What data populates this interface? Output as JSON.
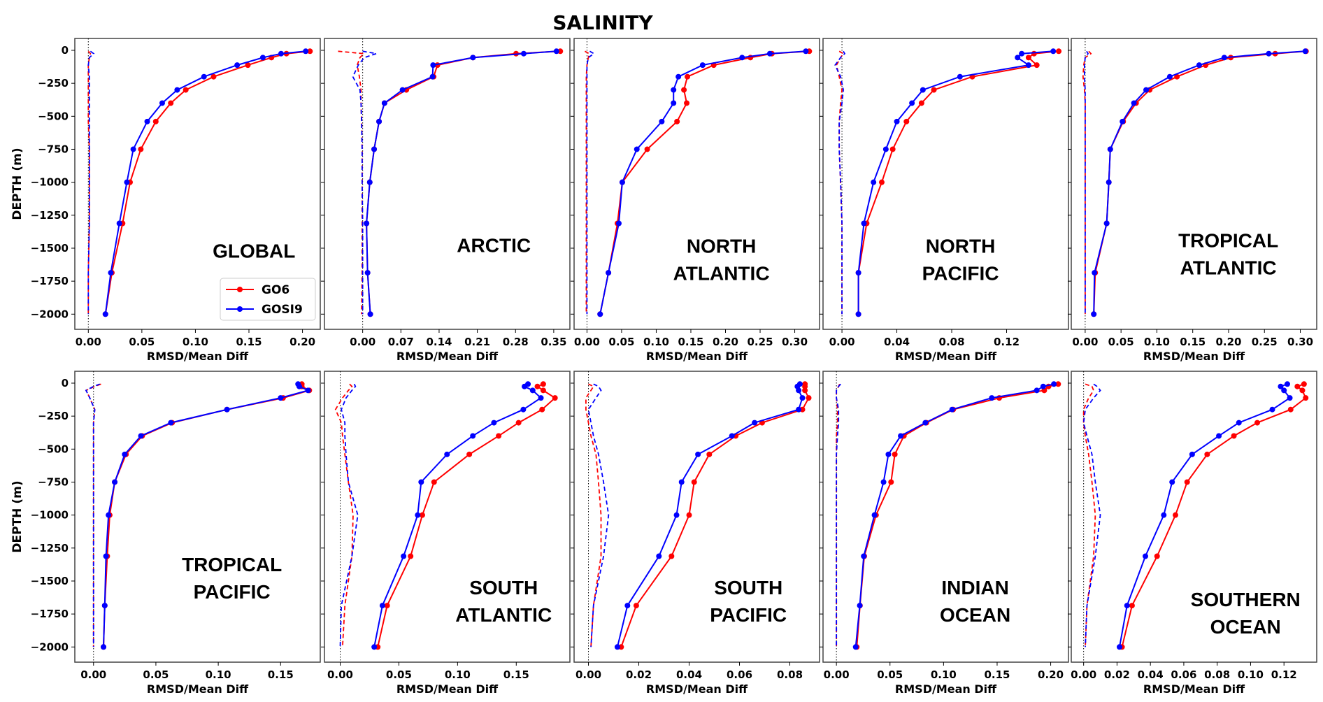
{
  "chart_data": {
    "type": "line",
    "title": "SALINITY",
    "ylabel": "DEPTH (m)",
    "xlabel": "RMSD/Mean Diff",
    "ylim": [
      -2115,
      90
    ],
    "yticks": [
      "0",
      "−250",
      "−500",
      "−750",
      "−1000",
      "−1250",
      "−1500",
      "−1750",
      "−2000"
    ],
    "ytick_values": [
      0,
      -250,
      -500,
      -750,
      -1000,
      -1250,
      -1500,
      -1750,
      -2000
    ],
    "depths": [
      -7,
      -25,
      -55,
      -112,
      -200,
      -300,
      -400,
      -540,
      -750,
      -1000,
      -1312,
      -1686,
      -2000
    ],
    "legend": {
      "placement": "lower-right of first panel",
      "entries": [
        {
          "name": "GO6",
          "color": "#ff0000"
        },
        {
          "name": "GOSI9",
          "color": "#0000ff"
        }
      ]
    },
    "notes": "Solid lines with markers = RMSD; dashed lines = mean difference; dotted vertical line at 0",
    "panels": [
      {
        "label": [
          "GLOBAL"
        ],
        "xlim": [
          -0.0126,
          0.2166
        ],
        "xticks": [
          0,
          0.05,
          0.1,
          0.15,
          0.2
        ],
        "xtick_labels": [
          "0.00",
          "0.05",
          "0.10",
          "0.15",
          "0.20"
        ],
        "GO6": [
          0.207,
          0.185,
          0.171,
          0.149,
          0.117,
          0.091,
          0.077,
          0.063,
          0.049,
          0.039,
          0.032,
          0.022,
          0.016
        ],
        "GOSI9": [
          0.203,
          0.18,
          0.163,
          0.139,
          0.108,
          0.083,
          0.069,
          0.055,
          0.042,
          0.036,
          0.029,
          0.021,
          0.016
        ],
        "GO6_mean": [
          0.0,
          0.002,
          0.001,
          0.0,
          0.0,
          0.0,
          0.0,
          0.0,
          0.001,
          0.001,
          0.001,
          0.0,
          0.0
        ],
        "GOSI9_mean": [
          0.002,
          0.005,
          0.001,
          0.0,
          0.001,
          0.001,
          0.001,
          0.001,
          0.001,
          0.001,
          0.001,
          0.0,
          0.0
        ]
      },
      {
        "label": [
          "ARCTIC"
        ],
        "xlim": [
          -0.07,
          0.3796
        ],
        "xticks": [
          0,
          0.07,
          0.14,
          0.21,
          0.28,
          0.35
        ],
        "xtick_labels": [
          "0.00",
          "0.07",
          "0.14",
          "0.21",
          "0.28",
          "0.35"
        ],
        "GO6": [
          0.362,
          0.281,
          0.202,
          0.137,
          0.13,
          0.08,
          0.04,
          0.03,
          0.021,
          0.013,
          0.007,
          0.009,
          0.014
        ],
        "GOSI9": [
          0.355,
          0.295,
          0.202,
          0.129,
          0.128,
          0.073,
          0.04,
          0.03,
          0.021,
          0.013,
          0.007,
          0.009,
          0.014
        ],
        "GO6_mean": [
          -0.045,
          0.002,
          -0.005,
          -0.01,
          -0.006,
          -0.003,
          -0.003,
          -0.002,
          -0.001,
          -0.001,
          -0.001,
          -0.001,
          -0.002
        ],
        "GOSI9_mean": [
          0.0,
          0.025,
          0.003,
          -0.008,
          -0.018,
          -0.005,
          -0.003,
          -0.002,
          -0.001,
          -0.001,
          0.0,
          0.0,
          0.0
        ]
      },
      {
        "label": [
          "NORTH",
          "ATLANTIC"
        ],
        "xlim": [
          -0.0186,
          0.3358
        ],
        "xticks": [
          0,
          0.05,
          0.1,
          0.15,
          0.2,
          0.25,
          0.3
        ],
        "xtick_labels": [
          "0.00",
          "0.05",
          "0.10",
          "0.15",
          "0.20",
          "0.25",
          "0.30"
        ],
        "GO6": [
          0.321,
          0.267,
          0.236,
          0.183,
          0.145,
          0.14,
          0.144,
          0.13,
          0.087,
          0.051,
          0.044,
          0.031,
          0.019
        ],
        "GOSI9": [
          0.316,
          0.264,
          0.224,
          0.167,
          0.132,
          0.125,
          0.125,
          0.108,
          0.072,
          0.051,
          0.046,
          0.031,
          0.019
        ],
        "GO6_mean": [
          -0.003,
          0.003,
          0.002,
          0.0,
          -0.001,
          -0.001,
          -0.001,
          -0.001,
          -0.001,
          -0.001,
          -0.001,
          -0.001,
          -0.001
        ],
        "GOSI9_mean": [
          0.004,
          0.01,
          0.002,
          0.0,
          0.0,
          0.0,
          0.0,
          0.0,
          0.0,
          0.0,
          0.0,
          0.0,
          0.0
        ]
      },
      {
        "label": [
          "NORTH",
          "PACIFIC"
        ],
        "xlim": [
          -0.0138,
          0.1651
        ],
        "xticks": [
          0,
          0.04,
          0.08,
          0.12
        ],
        "xtick_labels": [
          "0.00",
          "0.04",
          "0.08",
          "0.12"
        ],
        "GO6": [
          0.158,
          0.14,
          0.136,
          0.142,
          0.095,
          0.067,
          0.058,
          0.047,
          0.037,
          0.029,
          0.018,
          0.012,
          0.012
        ],
        "GOSI9": [
          0.154,
          0.131,
          0.128,
          0.136,
          0.086,
          0.059,
          0.051,
          0.04,
          0.032,
          0.023,
          0.016,
          0.012,
          0.012
        ],
        "GO6_mean": [
          -0.002,
          0.001,
          -0.001,
          -0.004,
          -0.002,
          0.0,
          -0.001,
          -0.002,
          -0.002,
          -0.001,
          0.0,
          0.0,
          0.0
        ],
        "GOSI9_mean": [
          0.001,
          0.002,
          -0.001,
          -0.005,
          -0.001,
          0.001,
          0.0,
          -0.002,
          -0.002,
          -0.001,
          0.0,
          0.0,
          0.0
        ]
      },
      {
        "label": [
          "TROPICAL",
          "ATLANTIC"
        ],
        "xlim": [
          -0.0194,
          0.3229
        ],
        "xticks": [
          0,
          0.05,
          0.1,
          0.15,
          0.2,
          0.25,
          0.3
        ],
        "xtick_labels": [
          "0.00",
          "0.05",
          "0.10",
          "0.15",
          "0.20",
          "0.25",
          "0.30"
        ],
        "GO6": [
          0.308,
          0.265,
          0.203,
          0.168,
          0.128,
          0.09,
          0.071,
          0.053,
          0.035,
          0.033,
          0.03,
          0.014,
          0.012
        ],
        "GOSI9": [
          0.307,
          0.256,
          0.194,
          0.159,
          0.118,
          0.085,
          0.068,
          0.052,
          0.035,
          0.033,
          0.03,
          0.013,
          0.012
        ],
        "GO6_mean": [
          0.005,
          0.008,
          0.0,
          -0.002,
          -0.003,
          -0.001,
          0.0,
          0.0,
          0.0,
          0.0,
          0.0,
          0.0,
          0.0
        ],
        "GOSI9_mean": [
          0.002,
          0.004,
          0.0,
          -0.001,
          -0.001,
          0.0,
          0.0,
          0.0,
          0.0,
          0.0,
          0.0,
          0.0,
          0.0
        ]
      },
      {
        "label": [
          "TROPICAL",
          "PACIFIC"
        ],
        "xlim": [
          -0.015,
          0.1818
        ],
        "xticks": [
          0,
          0.05,
          0.1,
          0.15
        ],
        "xtick_labels": [
          "0.00",
          "0.05",
          "0.10",
          "0.15"
        ],
        "GO6": [
          0.167,
          0.167,
          0.173,
          0.152,
          0.107,
          0.063,
          0.039,
          0.026,
          0.017,
          0.013,
          0.011,
          0.009,
          0.008
        ],
        "GOSI9": [
          0.164,
          0.165,
          0.172,
          0.15,
          0.107,
          0.062,
          0.038,
          0.025,
          0.017,
          0.012,
          0.01,
          0.009,
          0.008
        ],
        "GO6_mean": [
          0.006,
          0.001,
          -0.006,
          -0.003,
          0.001,
          0.0,
          0.0,
          0.0,
          0.0,
          0.0,
          0.0,
          0.0,
          0.0
        ],
        "GOSI9_mean": [
          0.005,
          0.0,
          -0.006,
          -0.003,
          0.001,
          0.0,
          0.0,
          0.0,
          0.0,
          0.0,
          0.0,
          0.0,
          0.0
        ]
      },
      {
        "label": [
          "SOUTH",
          "ATLANTIC"
        ],
        "xlim": [
          -0.0134,
          0.1957
        ],
        "xticks": [
          0,
          0.05,
          0.1,
          0.15
        ],
        "xtick_labels": [
          "0.00",
          "0.05",
          "0.10",
          "0.15"
        ],
        "GO6": [
          0.173,
          0.168,
          0.173,
          0.183,
          0.172,
          0.152,
          0.135,
          0.11,
          0.08,
          0.07,
          0.06,
          0.04,
          0.032
        ],
        "GOSI9": [
          0.16,
          0.157,
          0.164,
          0.171,
          0.156,
          0.131,
          0.113,
          0.091,
          0.069,
          0.066,
          0.054,
          0.036,
          0.029
        ],
        "GO6_mean": [
          0.008,
          0.01,
          0.007,
          0.002,
          -0.004,
          0.001,
          0.002,
          0.004,
          0.007,
          0.011,
          0.01,
          0.004,
          0.002
        ],
        "GOSI9_mean": [
          0.012,
          0.013,
          0.01,
          0.005,
          0.001,
          0.004,
          0.004,
          0.005,
          0.007,
          0.015,
          0.01,
          0.001,
          0.0
        ]
      },
      {
        "label": [
          "SOUTH",
          "PACIFIC"
        ],
        "xlim": [
          -0.0057,
          0.0918
        ],
        "xticks": [
          0,
          0.02,
          0.04,
          0.06,
          0.08
        ],
        "xtick_labels": [
          "0.00",
          "0.02",
          "0.04",
          "0.06",
          "0.08"
        ],
        "GO6": [
          0.086,
          0.086,
          0.086,
          0.0875,
          0.085,
          0.069,
          0.0585,
          0.048,
          0.042,
          0.04,
          0.033,
          0.019,
          0.013
        ],
        "GOSI9": [
          0.084,
          0.083,
          0.0835,
          0.085,
          0.0835,
          0.066,
          0.057,
          0.0435,
          0.037,
          0.035,
          0.028,
          0.0155,
          0.0115
        ],
        "GO6_mean": [
          0.0,
          0.002,
          0.001,
          -0.001,
          -0.001,
          0.0,
          0.001,
          0.003,
          0.004,
          0.005,
          0.005,
          0.002,
          0.001
        ],
        "GOSI9_mean": [
          0.002,
          0.004,
          0.005,
          0.003,
          0.0,
          0.001,
          0.002,
          0.004,
          0.006,
          0.008,
          0.006,
          0.002,
          0.001
        ]
      },
      {
        "label": [
          "INDIAN",
          "OCEAN"
        ],
        "xlim": [
          -0.0125,
          0.2166
        ],
        "xticks": [
          0,
          0.05,
          0.1,
          0.15,
          0.2
        ],
        "xtick_labels": [
          "0.00",
          "0.05",
          "0.10",
          "0.15",
          "0.20"
        ],
        "GO6": [
          0.207,
          0.198,
          0.194,
          0.152,
          0.109,
          0.084,
          0.063,
          0.0545,
          0.051,
          0.037,
          0.026,
          0.022,
          0.019
        ],
        "GOSI9": [
          0.203,
          0.193,
          0.187,
          0.145,
          0.108,
          0.083,
          0.06,
          0.0485,
          0.044,
          0.0355,
          0.0255,
          0.0218,
          0.018
        ],
        "GO6_mean": [
          0.003,
          0.002,
          0.0,
          0.0,
          0.001,
          0.001,
          0.0,
          0.0,
          0.0,
          0.0,
          0.0,
          0.0,
          0.0
        ],
        "GOSI9_mean": [
          0.004,
          0.002,
          0.0,
          0.0,
          0.002,
          0.002,
          0.001,
          0.0,
          0.0,
          0.0,
          0.0,
          0.0,
          0.0
        ]
      },
      {
        "label": [
          "SOUTHERN",
          "OCEAN"
        ],
        "xlim": [
          -0.0074,
          0.1396
        ],
        "xticks": [
          0,
          0.02,
          0.04,
          0.06,
          0.08,
          0.1,
          0.12
        ],
        "xtick_labels": [
          "0.00",
          "0.02",
          "0.04",
          "0.06",
          "0.08",
          "0.10",
          "0.12"
        ],
        "GO6": [
          0.132,
          0.128,
          0.131,
          0.133,
          0.124,
          0.104,
          0.09,
          0.074,
          0.062,
          0.055,
          0.044,
          0.029,
          0.023
        ],
        "GOSI9": [
          0.122,
          0.118,
          0.12,
          0.1235,
          0.113,
          0.093,
          0.081,
          0.065,
          0.053,
          0.048,
          0.037,
          0.026,
          0.0215
        ],
        "GO6_mean": [
          0.001,
          0.005,
          0.006,
          0.003,
          0.0,
          0.0,
          0.001,
          0.003,
          0.005,
          0.007,
          0.006,
          0.002,
          0.001
        ],
        "GOSI9_mean": [
          0.006,
          0.008,
          0.01,
          0.006,
          0.001,
          0.0,
          0.002,
          0.005,
          0.007,
          0.01,
          0.007,
          0.002,
          0.001
        ]
      }
    ]
  }
}
